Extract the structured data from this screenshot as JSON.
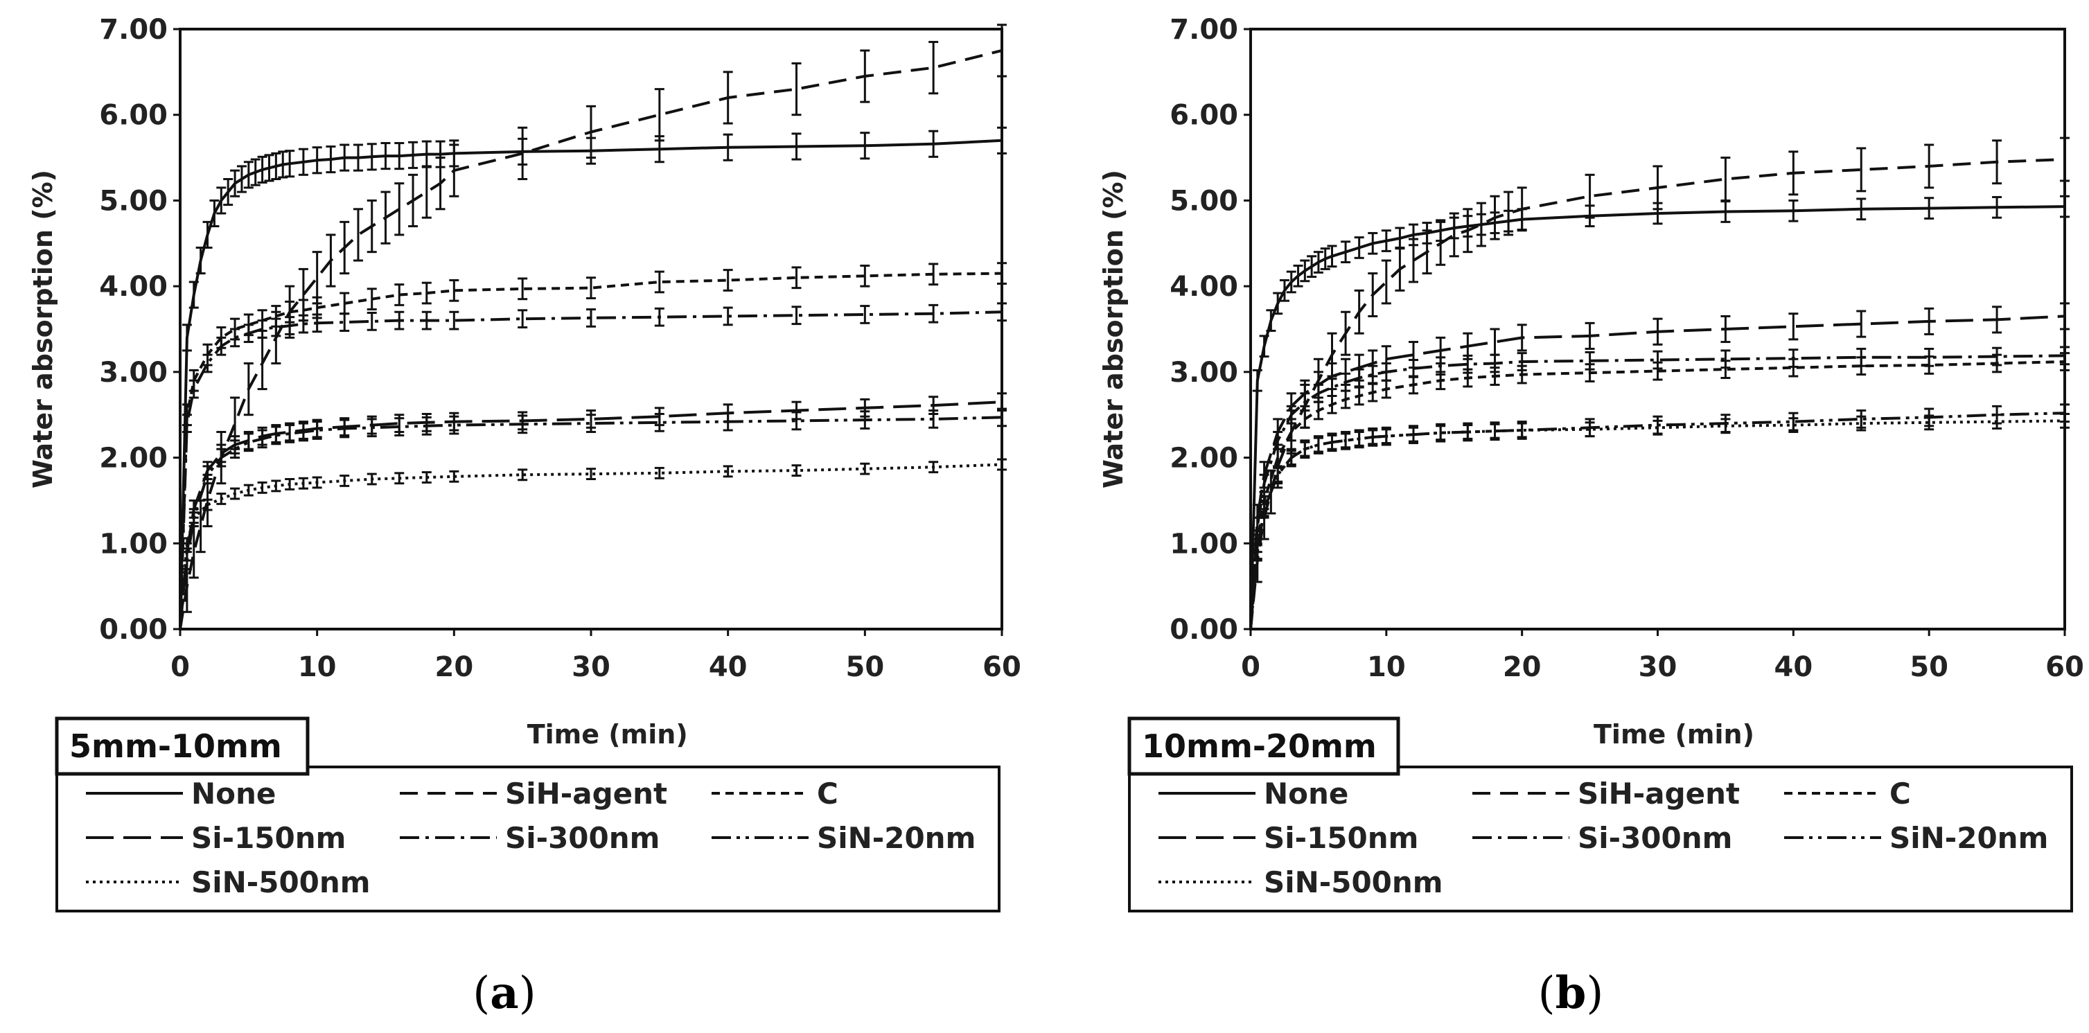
{
  "chart_data": [
    {
      "type": "line",
      "panel": "(a)",
      "panel_letter": "a",
      "size_range": "5mm-10mm",
      "xlabel": "Time (min)",
      "ylabel": "Water absorption (%)",
      "xlim": [
        0,
        60
      ],
      "ylim": [
        0,
        7
      ],
      "xticks": [
        "0",
        "10",
        "20",
        "30",
        "40",
        "50",
        "60"
      ],
      "yticks": [
        "0.00",
        "1.00",
        "2.00",
        "3.00",
        "4.00",
        "5.00",
        "6.00",
        "7.00"
      ],
      "legend": [
        "None",
        "SiH-agent",
        "C",
        "Si-150nm",
        "Si-300nm",
        "SiN-20nm",
        "SiN-500nm"
      ],
      "series": [
        {
          "name": "None",
          "dash": "solid",
          "x": [
            0,
            0.5,
            1,
            1.5,
            2,
            2.5,
            3,
            3.5,
            4,
            4.5,
            5,
            5.5,
            6,
            6.5,
            7,
            7.5,
            8,
            9,
            10,
            11,
            12,
            13,
            14,
            15,
            16,
            17,
            18,
            19,
            20,
            25,
            30,
            35,
            40,
            45,
            50,
            55,
            60
          ],
          "y": [
            0,
            3.4,
            3.9,
            4.3,
            4.6,
            4.85,
            5.0,
            5.1,
            5.2,
            5.25,
            5.3,
            5.33,
            5.36,
            5.38,
            5.4,
            5.42,
            5.43,
            5.45,
            5.47,
            5.48,
            5.5,
            5.5,
            5.51,
            5.52,
            5.52,
            5.53,
            5.54,
            5.54,
            5.55,
            5.57,
            5.58,
            5.6,
            5.62,
            5.63,
            5.64,
            5.66,
            5.7
          ],
          "err": 0.15
        },
        {
          "name": "SiH-agent",
          "dash": "long-dash",
          "x": [
            0,
            0.5,
            1,
            1.5,
            2,
            3,
            4,
            5,
            6,
            7,
            8,
            9,
            10,
            11,
            12,
            13,
            14,
            15,
            16,
            17,
            18,
            19,
            20,
            25,
            30,
            35,
            40,
            45,
            50,
            55,
            60
          ],
          "y": [
            0,
            0.5,
            0.9,
            1.2,
            1.5,
            2.0,
            2.4,
            2.8,
            3.1,
            3.4,
            3.7,
            3.9,
            4.1,
            4.3,
            4.45,
            4.6,
            4.7,
            4.8,
            4.9,
            5.0,
            5.1,
            5.2,
            5.35,
            5.55,
            5.8,
            6.0,
            6.2,
            6.3,
            6.45,
            6.55,
            6.75
          ],
          "err": 0.3
        },
        {
          "name": "C",
          "dash": "short-dash",
          "x": [
            0,
            0.5,
            1,
            2,
            3,
            4,
            5,
            6,
            7,
            8,
            9,
            10,
            12,
            14,
            16,
            18,
            20,
            25,
            30,
            35,
            40,
            45,
            50,
            55,
            60
          ],
          "y": [
            0,
            2.5,
            2.9,
            3.2,
            3.4,
            3.5,
            3.55,
            3.6,
            3.65,
            3.7,
            3.72,
            3.75,
            3.8,
            3.85,
            3.9,
            3.92,
            3.95,
            3.97,
            3.98,
            4.05,
            4.07,
            4.1,
            4.12,
            4.14,
            4.15
          ],
          "err": 0.12
        },
        {
          "name": "Si-150nm",
          "dash": "long-dash-wide",
          "x": [
            0,
            0.5,
            1,
            2,
            3,
            4,
            5,
            6,
            7,
            8,
            9,
            10,
            12,
            14,
            16,
            18,
            20,
            25,
            30,
            35,
            40,
            45,
            50,
            55,
            60
          ],
          "y": [
            0,
            0.9,
            1.4,
            1.85,
            2.05,
            2.15,
            2.2,
            2.25,
            2.28,
            2.3,
            2.32,
            2.34,
            2.36,
            2.38,
            2.4,
            2.41,
            2.42,
            2.43,
            2.45,
            2.48,
            2.52,
            2.55,
            2.58,
            2.61,
            2.65
          ],
          "err": 0.1
        },
        {
          "name": "Si-300nm",
          "dash": "dash-dot",
          "x": [
            0,
            0.5,
            1,
            2,
            3,
            4,
            5,
            6,
            7,
            8,
            9,
            10,
            12,
            14,
            16,
            18,
            20,
            25,
            30,
            35,
            40,
            45,
            50,
            55,
            60
          ],
          "y": [
            0,
            2.4,
            2.8,
            3.1,
            3.3,
            3.4,
            3.45,
            3.5,
            3.52,
            3.54,
            3.56,
            3.57,
            3.58,
            3.59,
            3.6,
            3.6,
            3.6,
            3.62,
            3.63,
            3.64,
            3.65,
            3.66,
            3.67,
            3.68,
            3.7
          ],
          "err": 0.1
        },
        {
          "name": "SiN-20nm",
          "dash": "dash-dot-dot",
          "x": [
            0,
            0.5,
            1,
            2,
            3,
            4,
            5,
            6,
            7,
            8,
            9,
            10,
            12,
            14,
            16,
            18,
            20,
            25,
            30,
            35,
            40,
            45,
            50,
            55,
            60
          ],
          "y": [
            0,
            0.8,
            1.3,
            1.8,
            2.0,
            2.1,
            2.18,
            2.22,
            2.26,
            2.28,
            2.3,
            2.32,
            2.34,
            2.35,
            2.36,
            2.37,
            2.38,
            2.39,
            2.4,
            2.41,
            2.42,
            2.43,
            2.44,
            2.45,
            2.47
          ],
          "err": 0.1
        },
        {
          "name": "SiN-500nm",
          "dash": "dotted",
          "x": [
            0,
            0.5,
            1,
            2,
            3,
            4,
            5,
            6,
            7,
            8,
            9,
            10,
            12,
            14,
            16,
            18,
            20,
            25,
            30,
            35,
            40,
            45,
            50,
            55,
            60
          ],
          "y": [
            0,
            1.0,
            1.3,
            1.45,
            1.52,
            1.58,
            1.62,
            1.65,
            1.67,
            1.69,
            1.7,
            1.71,
            1.73,
            1.75,
            1.76,
            1.77,
            1.78,
            1.8,
            1.81,
            1.82,
            1.84,
            1.85,
            1.87,
            1.89,
            1.92
          ],
          "err": 0.06
        }
      ]
    },
    {
      "type": "line",
      "panel": "(b)",
      "panel_letter": "b",
      "size_range": "10mm-20mm",
      "xlabel": "Time (min)",
      "ylabel": "Water absorption (%)",
      "xlim": [
        0,
        60
      ],
      "ylim": [
        0,
        7
      ],
      "xticks": [
        "0",
        "10",
        "20",
        "30",
        "40",
        "50",
        "60"
      ],
      "yticks": [
        "0.00",
        "1.00",
        "2.00",
        "3.00",
        "4.00",
        "5.00",
        "6.00",
        "7.00"
      ],
      "legend": [
        "None",
        "SiH-agent",
        "C",
        "Si-150nm",
        "Si-300nm",
        "SiN-20nm",
        "SiN-500nm"
      ],
      "series": [
        {
          "name": "None",
          "dash": "solid",
          "x": [
            0,
            0.5,
            1,
            1.5,
            2,
            2.5,
            3,
            3.5,
            4,
            4.5,
            5,
            5.5,
            6,
            7,
            8,
            9,
            10,
            11,
            12,
            13,
            14,
            15,
            16,
            17,
            18,
            19,
            20,
            25,
            30,
            35,
            40,
            45,
            50,
            55,
            60
          ],
          "y": [
            0,
            2.9,
            3.3,
            3.6,
            3.8,
            3.95,
            4.05,
            4.12,
            4.18,
            4.23,
            4.28,
            4.32,
            4.35,
            4.4,
            4.45,
            4.5,
            4.53,
            4.56,
            4.6,
            4.62,
            4.65,
            4.68,
            4.7,
            4.72,
            4.74,
            4.76,
            4.78,
            4.82,
            4.85,
            4.87,
            4.88,
            4.9,
            4.91,
            4.92,
            4.93
          ],
          "err": 0.12
        },
        {
          "name": "SiH-agent",
          "dash": "long-dash",
          "x": [
            0,
            0.5,
            1,
            1.5,
            2,
            3,
            4,
            5,
            6,
            7,
            8,
            9,
            10,
            11,
            12,
            13,
            14,
            15,
            16,
            17,
            18,
            19,
            20,
            25,
            30,
            35,
            40,
            45,
            50,
            55,
            60
          ],
          "y": [
            0,
            0.8,
            1.3,
            1.6,
            1.9,
            2.3,
            2.6,
            2.9,
            3.2,
            3.45,
            3.7,
            3.9,
            4.05,
            4.2,
            4.3,
            4.4,
            4.5,
            4.6,
            4.65,
            4.72,
            4.8,
            4.85,
            4.9,
            5.05,
            5.15,
            5.25,
            5.32,
            5.36,
            5.4,
            5.45,
            5.48
          ],
          "err": 0.25
        },
        {
          "name": "C",
          "dash": "short-dash",
          "x": [
            0,
            0.5,
            1,
            2,
            3,
            4,
            5,
            6,
            7,
            8,
            9,
            10,
            12,
            14,
            16,
            18,
            20,
            25,
            30,
            35,
            40,
            45,
            50,
            55,
            60
          ],
          "y": [
            0,
            1.0,
            1.5,
            2.0,
            2.3,
            2.45,
            2.55,
            2.62,
            2.68,
            2.72,
            2.76,
            2.8,
            2.85,
            2.9,
            2.93,
            2.95,
            2.97,
            2.99,
            3.01,
            3.03,
            3.05,
            3.07,
            3.08,
            3.1,
            3.12
          ],
          "err": 0.1
        },
        {
          "name": "Si-150nm",
          "dash": "long-dash-wide",
          "x": [
            0,
            0.5,
            1,
            2,
            3,
            4,
            5,
            6,
            7,
            8,
            9,
            10,
            12,
            14,
            16,
            18,
            20,
            25,
            30,
            35,
            40,
            45,
            50,
            55,
            60
          ],
          "y": [
            0,
            1.3,
            1.8,
            2.3,
            2.6,
            2.75,
            2.85,
            2.95,
            3.0,
            3.05,
            3.1,
            3.15,
            3.2,
            3.25,
            3.3,
            3.35,
            3.4,
            3.42,
            3.47,
            3.5,
            3.53,
            3.56,
            3.59,
            3.61,
            3.65
          ],
          "err": 0.15
        },
        {
          "name": "Si-300nm",
          "dash": "dash-dot",
          "x": [
            0,
            0.5,
            1,
            2,
            3,
            4,
            5,
            6,
            7,
            8,
            9,
            10,
            12,
            14,
            16,
            18,
            20,
            25,
            30,
            35,
            40,
            45,
            50,
            55,
            60
          ],
          "y": [
            0,
            1.2,
            1.7,
            2.2,
            2.5,
            2.65,
            2.75,
            2.82,
            2.88,
            2.93,
            2.97,
            3.0,
            3.04,
            3.07,
            3.09,
            3.1,
            3.12,
            3.13,
            3.14,
            3.15,
            3.16,
            3.17,
            3.17,
            3.18,
            3.19
          ],
          "err": 0.1
        },
        {
          "name": "SiN-20nm",
          "dash": "dash-dot-dot",
          "x": [
            0,
            0.5,
            1,
            2,
            3,
            4,
            5,
            6,
            7,
            8,
            9,
            10,
            12,
            14,
            16,
            18,
            20,
            25,
            30,
            35,
            40,
            45,
            50,
            55,
            60
          ],
          "y": [
            0,
            0.9,
            1.4,
            1.8,
            2.0,
            2.1,
            2.15,
            2.18,
            2.2,
            2.22,
            2.24,
            2.25,
            2.27,
            2.29,
            2.3,
            2.31,
            2.32,
            2.35,
            2.38,
            2.4,
            2.42,
            2.45,
            2.47,
            2.5,
            2.52
          ],
          "err": 0.1
        },
        {
          "name": "SiN-500nm",
          "dash": "dotted",
          "x": [
            0,
            0.5,
            1,
            2,
            3,
            4,
            5,
            6,
            7,
            8,
            9,
            10,
            12,
            14,
            16,
            18,
            20,
            25,
            30,
            35,
            40,
            45,
            50,
            55,
            60
          ],
          "y": [
            0,
            0.9,
            1.4,
            1.8,
            2.0,
            2.1,
            2.15,
            2.18,
            2.2,
            2.22,
            2.24,
            2.25,
            2.27,
            2.29,
            2.3,
            2.31,
            2.32,
            2.33,
            2.35,
            2.37,
            2.38,
            2.4,
            2.41,
            2.42,
            2.43
          ],
          "err": 0.08
        }
      ]
    }
  ]
}
